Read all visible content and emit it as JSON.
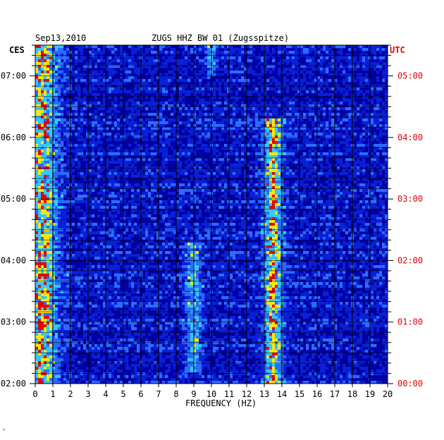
{
  "header": {
    "date": "Sep13,2010",
    "station": "ZUGS HHZ BW 01 (Zugsspitze)"
  },
  "timezones": {
    "left": "CES",
    "right": "UTC"
  },
  "corner_mark": "ᴬ",
  "colors": {
    "background": "#0000a0",
    "low": "#0a1fd8",
    "mid": "#2a6cff",
    "cyan": "#33c8ff",
    "yellow": "#ffe800",
    "red": "#e80000",
    "grid": "#000000",
    "utc_label": "#e00000"
  },
  "chart_data": {
    "type": "heatmap",
    "title": "ZUGS HHZ BW 01 (Zugsspitze)",
    "xlabel": "FREQUENCY (HZ)",
    "ylabel": "",
    "xlim": [
      0,
      20
    ],
    "x_ticks": [
      "0",
      "1",
      "2",
      "3",
      "4",
      "5",
      "6",
      "7",
      "8",
      "9",
      "10",
      "11",
      "12",
      "13",
      "14",
      "15",
      "16",
      "17",
      "18",
      "19",
      "20"
    ],
    "y_ticks_left": [
      "07:00",
      "06:00",
      "05:00",
      "04:00",
      "03:00",
      "02:00"
    ],
    "y_ticks_right": [
      "05:00",
      "04:00",
      "03:00",
      "02:00",
      "01:00",
      "00:00"
    ],
    "time_range_utc_hours": [
      0,
      5.5
    ],
    "grid": true,
    "features": [
      {
        "freq_hz": 0.4,
        "band_width_hz": 1.0,
        "intensity": "high",
        "span": "full"
      },
      {
        "freq_hz": 13.5,
        "band_width_hz": 0.6,
        "intensity": "high",
        "span_utc_hours": [
          0,
          4.3
        ]
      },
      {
        "freq_hz": 9.0,
        "band_width_hz": 0.5,
        "intensity": "medium",
        "span_utc_hours": [
          0.2,
          2.3
        ]
      },
      {
        "freq_hz": 10.0,
        "band_width_hz": 0.3,
        "intensity": "medium",
        "span_utc_hours": [
          5.0,
          5.5
        ]
      }
    ]
  }
}
